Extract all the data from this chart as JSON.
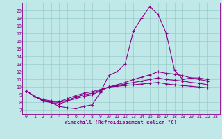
{
  "xlabel": "Windchill (Refroidissement éolien,°C)",
  "background_color": "#c0e8e8",
  "line_color": "#880088",
  "grid_color": "#99cccc",
  "xlim": [
    -0.5,
    23.5
  ],
  "ylim": [
    6.5,
    21.0
  ],
  "x_ticks": [
    0,
    1,
    2,
    3,
    4,
    5,
    6,
    7,
    8,
    9,
    10,
    11,
    12,
    13,
    14,
    15,
    16,
    17,
    18,
    19,
    20,
    21,
    22,
    23
  ],
  "y_ticks": [
    7,
    8,
    9,
    10,
    11,
    12,
    13,
    14,
    15,
    16,
    17,
    18,
    19,
    20
  ],
  "lines": [
    [
      9.5,
      8.8,
      8.2,
      8.0,
      7.5,
      7.3,
      7.2,
      7.5,
      7.7,
      9.3,
      11.5,
      12.0,
      13.0,
      17.3,
      19.0,
      20.5,
      19.5,
      17.0,
      12.2,
      11.0,
      11.2,
      11.2,
      11.0,
      null
    ],
    [
      9.5,
      8.8,
      8.2,
      8.0,
      7.8,
      8.2,
      8.5,
      8.8,
      9.0,
      9.5,
      10.0,
      10.3,
      10.6,
      11.0,
      11.3,
      11.6,
      12.0,
      11.8,
      11.7,
      11.5,
      11.2,
      11.0,
      10.8,
      null
    ],
    [
      9.5,
      8.8,
      8.3,
      8.1,
      8.0,
      8.3,
      8.7,
      9.0,
      9.2,
      9.6,
      10.0,
      10.2,
      10.4,
      10.6,
      10.8,
      11.0,
      11.2,
      11.0,
      10.9,
      10.8,
      10.6,
      10.5,
      10.3,
      null
    ],
    [
      9.5,
      8.8,
      8.4,
      8.2,
      8.1,
      8.5,
      8.9,
      9.2,
      9.4,
      9.7,
      10.0,
      10.1,
      10.2,
      10.3,
      10.4,
      10.5,
      10.6,
      10.4,
      10.3,
      10.2,
      10.1,
      10.0,
      9.9,
      null
    ]
  ]
}
